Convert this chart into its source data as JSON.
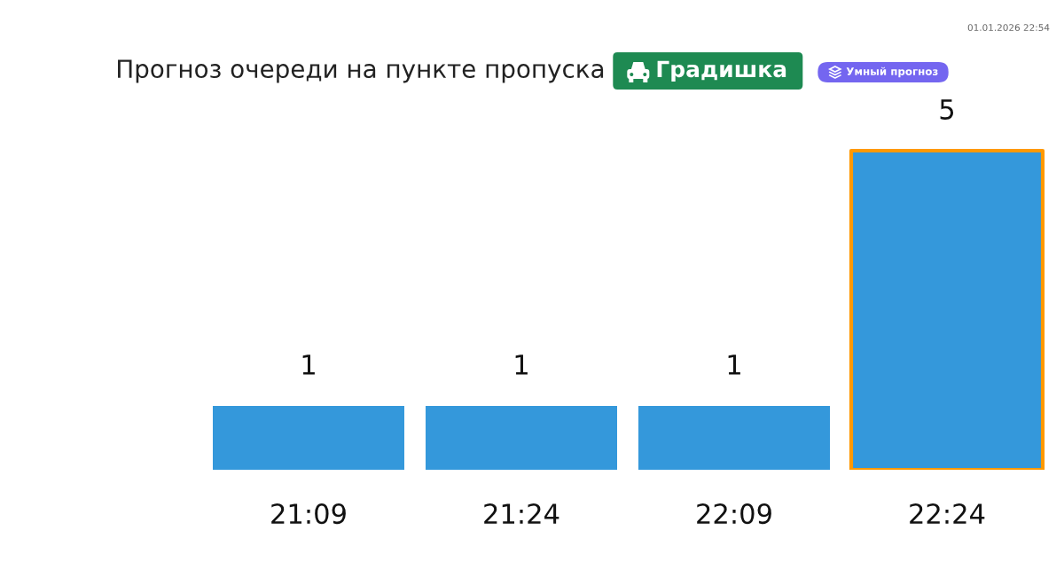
{
  "chart_data": {
    "type": "bar",
    "title": "Прогноз очереди на пункте пропуска",
    "subtitle": "Градишка",
    "annotations": [
      "Умный прогноз",
      "01.01.2026 22:54"
    ],
    "categories": [
      "21:09",
      "21:24",
      "22:09",
      "22:24"
    ],
    "values": [
      1,
      1,
      1,
      5
    ],
    "color": "#3498db",
    "data_labels": true,
    "grid": false,
    "tick_labels": "x"
  }
}
